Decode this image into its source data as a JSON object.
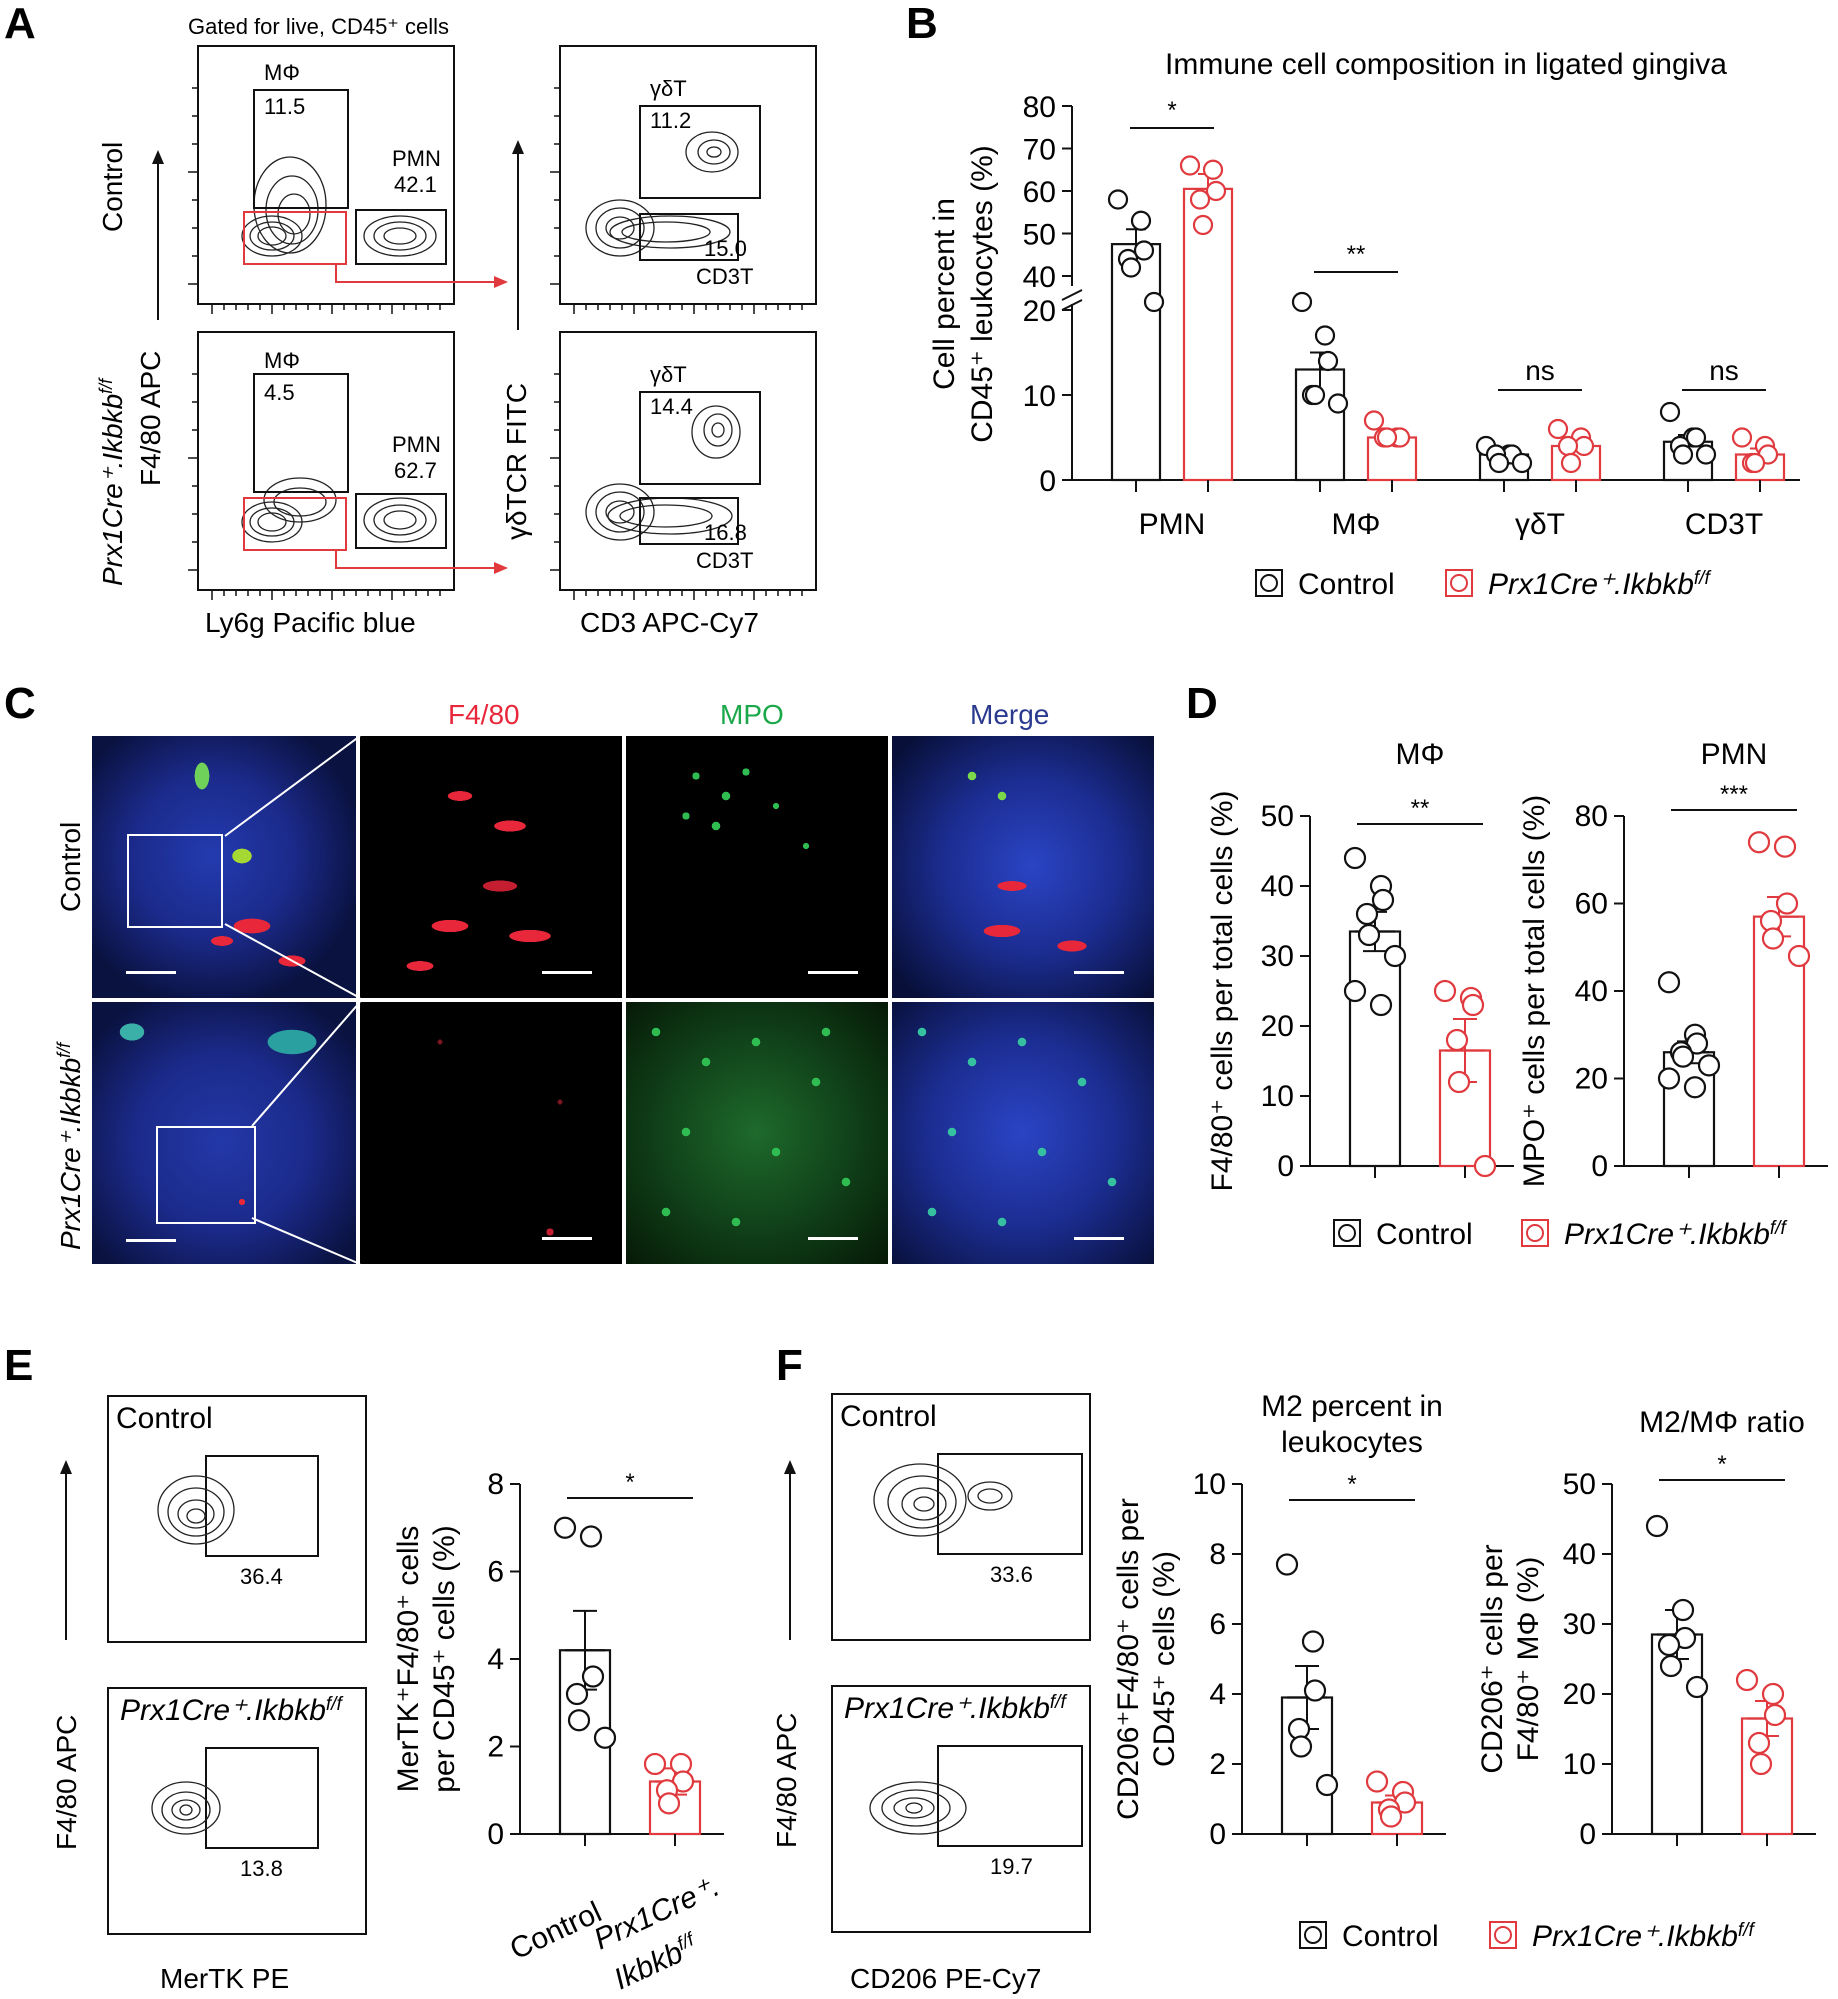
{
  "panel_labels": [
    "A",
    "B",
    "C",
    "D",
    "E",
    "F"
  ],
  "colors": {
    "control": "#111111",
    "knockout": "#e0393e",
    "f480": "#e8283a",
    "mpo": "#1aa84a",
    "merge": "#2a3a8f",
    "dapi": "#2b3fb0"
  },
  "legend": {
    "control": "Control",
    "knockout": "Prx1Cre⁺.Ikbkb",
    "knockout_sup": "f/f"
  },
  "panel_a": {
    "gate_title": "Gated for live, CD45⁺ cells",
    "row_labels": [
      "Control",
      "Prx1Cre⁺.Ikbkb",
      "F4/80 APC"
    ],
    "row_label_sup": "f/f",
    "axis_left_x": "Ly6g Pacific blue",
    "axis_mid_y": "γδTCR FITC",
    "axis_right_x": "CD3 APC-Cy7",
    "control": {
      "mp_label": "MΦ",
      "mp_value": "11.5",
      "pmn_label": "PMN",
      "pmn_value": "42.1",
      "gdt_label": "γδT",
      "gdt_value": "11.2",
      "cd3_value": "15.0",
      "cd3_label": "CD3T"
    },
    "knockout": {
      "mp_label": "MΦ",
      "mp_value": "4.5",
      "pmn_label": "PMN",
      "pmn_value": "62.7",
      "gdt_label": "γδT",
      "gdt_value": "14.4",
      "cd3_value": "16.8",
      "cd3_label": "CD3T"
    }
  },
  "panel_c": {
    "channels": [
      "F4/80",
      "MPO",
      "Merge"
    ],
    "row_labels": [
      "Control",
      "Prx1Cre⁺.Ikbkb"
    ],
    "row_label_sup": "f/f"
  },
  "panel_e": {
    "flow_control_label": "Control",
    "flow_ko_label": "Prx1Cre⁺.Ikbkb",
    "flow_ko_sup": "f/f",
    "flow_y": "F4/80 APC",
    "flow_x": "MerTK PE",
    "control_gate_value": "36.4",
    "ko_gate_value": "13.8",
    "xcat_control": "Control",
    "xcat_ko_1": "Prx1Cre⁺.",
    "xcat_ko_2": "Ikbkb",
    "xcat_ko_sup": "f/f"
  },
  "panel_f": {
    "flow_control_label": "Control",
    "flow_ko_label": "Prx1Cre⁺.Ikbkb",
    "flow_ko_sup": "f/f",
    "flow_y": "F4/80 APC",
    "flow_x": "CD206 PE-Cy7",
    "control_gate_value": "33.6",
    "ko_gate_value": "19.7"
  },
  "chart_data": [
    {
      "id": "B",
      "type": "bar",
      "title": "Immune cell composition in ligated gingiva",
      "ylabel_lines": [
        "Cell percent in",
        "CD45⁺ leukocytes (%)"
      ],
      "categories": [
        "PMN",
        "MΦ",
        "γδT",
        "CD3T"
      ],
      "axis_break": [
        20,
        40
      ],
      "ylim": [
        0,
        80
      ],
      "yticks": [
        0,
        10,
        20,
        40,
        50,
        60,
        70,
        80
      ],
      "ytick_labels": [
        "0",
        "10",
        "20",
        "40",
        "50",
        "60",
        "70",
        "80"
      ],
      "significance": [
        "*",
        "**",
        "ns",
        "ns"
      ],
      "series": [
        {
          "name": "Control",
          "values": [
            47.5,
            13.0,
            3.0,
            4.5
          ],
          "sem": [
            3.5,
            2.0,
            0.6,
            0.8
          ],
          "points": [
            [
              58,
              53,
              46,
              44,
              42,
              39
            ],
            [
              23,
              17,
              14,
              10,
              10,
              9
            ],
            [
              4,
              3,
              3,
              3,
              2,
              2
            ],
            [
              8,
              5,
              5,
              4,
              3,
              3
            ]
          ]
        },
        {
          "name": "Prx1Cre⁺.Ikbkb f/f",
          "values": [
            60.5,
            5.0,
            4.0,
            3.0
          ],
          "sem": [
            3.5,
            0.6,
            0.7,
            0.7
          ],
          "points": [
            [
              66,
              65,
              60,
              58,
              52
            ],
            [
              7,
              5,
              5,
              5,
              5
            ],
            [
              6,
              5,
              4,
              4,
              2
            ],
            [
              5,
              4,
              3,
              2,
              2
            ]
          ]
        }
      ]
    },
    {
      "id": "D-left",
      "type": "bar",
      "title": "MΦ",
      "ylabel": "F4/80⁺ cells per total cells (%)",
      "ylim": [
        0,
        50
      ],
      "yticks": [
        0,
        10,
        20,
        30,
        40,
        50
      ],
      "significance": "**",
      "series": [
        {
          "name": "Control",
          "values": [
            33.5
          ],
          "sem": [
            2.8
          ],
          "points": [
            44,
            40,
            38,
            36,
            33,
            30,
            25,
            23
          ]
        },
        {
          "name": "Prx1Cre⁺.Ikbkb f/f",
          "values": [
            16.5
          ],
          "sem": [
            4.5
          ],
          "points": [
            25,
            24,
            23,
            18,
            12,
            0
          ]
        }
      ]
    },
    {
      "id": "D-right",
      "type": "bar",
      "title": "PMN",
      "ylabel": "MPO⁺ cells per total cells (%)",
      "ylim": [
        0,
        80
      ],
      "yticks": [
        0,
        20,
        40,
        60,
        80
      ],
      "significance": "***",
      "series": [
        {
          "name": "Control",
          "values": [
            26.0
          ],
          "sem": [
            2.5
          ],
          "points": [
            42,
            30,
            28,
            26,
            25,
            23,
            20,
            18
          ]
        },
        {
          "name": "Prx1Cre⁺.Ikbkb f/f",
          "values": [
            57.0
          ],
          "sem": [
            4.5
          ],
          "points": [
            74,
            73,
            60,
            56,
            52,
            48
          ]
        }
      ]
    },
    {
      "id": "E",
      "type": "bar",
      "ylabel_lines": [
        "MerTK⁺F4/80⁺ cells",
        "per CD45⁺ cells (%)"
      ],
      "ylim": [
        0,
        8
      ],
      "yticks": [
        0,
        2,
        4,
        6,
        8
      ],
      "significance": "*",
      "series": [
        {
          "name": "Control",
          "values": [
            4.2
          ],
          "sem": [
            0.9
          ],
          "points": [
            7.0,
            6.8,
            3.6,
            3.2,
            2.6,
            2.2
          ]
        },
        {
          "name": "Prx1Cre⁺.Ikbkb f/f",
          "values": [
            1.2
          ],
          "sem": [
            0.3
          ],
          "points": [
            1.6,
            1.6,
            1.2,
            1.0,
            0.7
          ]
        }
      ]
    },
    {
      "id": "F-left",
      "type": "bar",
      "title_lines": [
        "M2 percent in",
        "leukocytes"
      ],
      "ylabel_lines": [
        "CD206⁺F4/80⁺ cells per",
        "CD45⁺ cells (%)"
      ],
      "ylim": [
        0,
        10
      ],
      "yticks": [
        0,
        2,
        4,
        6,
        8,
        10
      ],
      "significance": "*",
      "series": [
        {
          "name": "Control",
          "values": [
            3.9
          ],
          "sem": [
            0.9
          ],
          "points": [
            7.7,
            5.5,
            4.1,
            3.0,
            2.5,
            1.4
          ]
        },
        {
          "name": "Prx1Cre⁺.Ikbkb f/f",
          "values": [
            0.9
          ],
          "sem": [
            0.2
          ],
          "points": [
            1.5,
            1.2,
            0.9,
            0.7,
            0.5
          ]
        }
      ]
    },
    {
      "id": "F-right",
      "type": "bar",
      "title": "M2/MΦ ratio",
      "ylabel_lines": [
        "CD206⁺ cells per",
        "F4/80⁺ MΦ (%)"
      ],
      "ylim": [
        0,
        50
      ],
      "yticks": [
        0,
        10,
        20,
        30,
        40,
        50
      ],
      "significance": "*",
      "series": [
        {
          "name": "Control",
          "values": [
            28.5
          ],
          "sem": [
            3.5
          ],
          "points": [
            44,
            32,
            28,
            27,
            24,
            21
          ]
        },
        {
          "name": "Prx1Cre⁺.Ikbkb f/f",
          "values": [
            16.5
          ],
          "sem": [
            2.5
          ],
          "points": [
            22,
            20,
            17,
            13,
            10
          ]
        }
      ]
    }
  ]
}
